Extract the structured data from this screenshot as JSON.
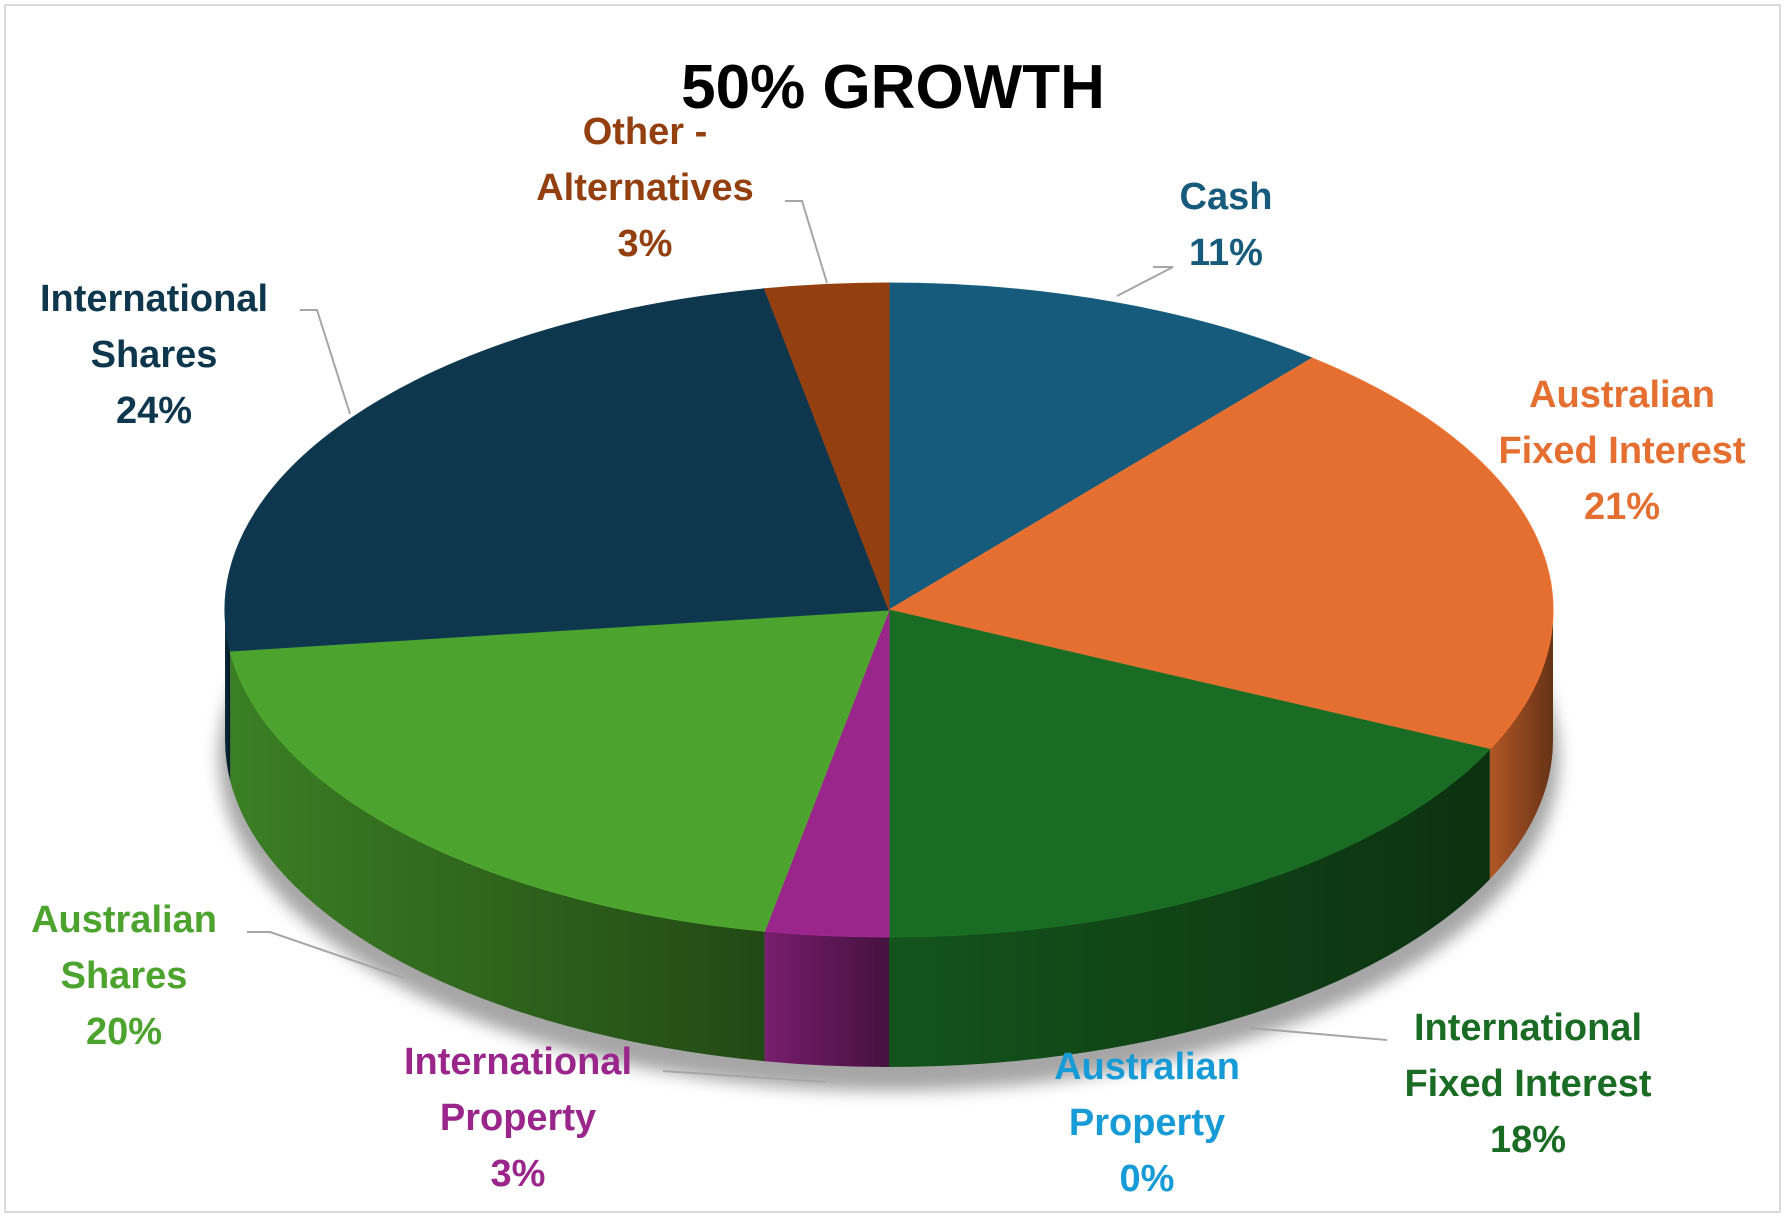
{
  "chart_data": {
    "type": "pie",
    "title": "50% GROWTH",
    "style": "3d",
    "slices": [
      {
        "name": "Cash",
        "value": 11,
        "label": "11%",
        "color": "#165B7C",
        "label_lines": [
          "Cash",
          "11%"
        ]
      },
      {
        "name": "Australian Fixed Interest",
        "value": 21,
        "label": "21%",
        "color": "#E46F30",
        "label_lines": [
          "Australian",
          "Fixed Interest",
          "21%"
        ]
      },
      {
        "name": "International Fixed Interest",
        "value": 18,
        "label": "18%",
        "color": "#1A6C24",
        "label_lines": [
          "International",
          "Fixed Interest",
          "18%"
        ]
      },
      {
        "name": "Australian Property",
        "value": 0,
        "label": "0%",
        "color": "#179BD7",
        "label_lines": [
          "Australian",
          "Property",
          "0%"
        ]
      },
      {
        "name": "International Property",
        "value": 3,
        "label": "3%",
        "color": "#9A268C",
        "label_lines": [
          "International",
          "Property",
          "3%"
        ]
      },
      {
        "name": "Australian Shares",
        "value": 20,
        "label": "20%",
        "color": "#4CA32E",
        "label_lines": [
          "Australian",
          "Shares",
          "20%"
        ]
      },
      {
        "name": "International Shares",
        "value": 24,
        "label": "24%",
        "color": "#0E374E",
        "label_lines": [
          "International",
          "Shares",
          "24%"
        ]
      },
      {
        "name": "Other - Alternatives",
        "value": 3,
        "label": "3%",
        "color": "#933F0F",
        "label_lines": [
          "Other -",
          "Alternatives",
          "3%"
        ]
      }
    ]
  },
  "colors": {
    "cash": "#165B7C",
    "australian_fixed_interest": "#E46F30",
    "international_fixed_interest": "#1A6C24",
    "australian_property": "#179BD7",
    "international_property": "#9A268C",
    "australian_shares": "#4CA32E",
    "international_shares": "#0E374E",
    "other_alternatives": "#933F0F",
    "leader_line": "#a6a6a6"
  }
}
